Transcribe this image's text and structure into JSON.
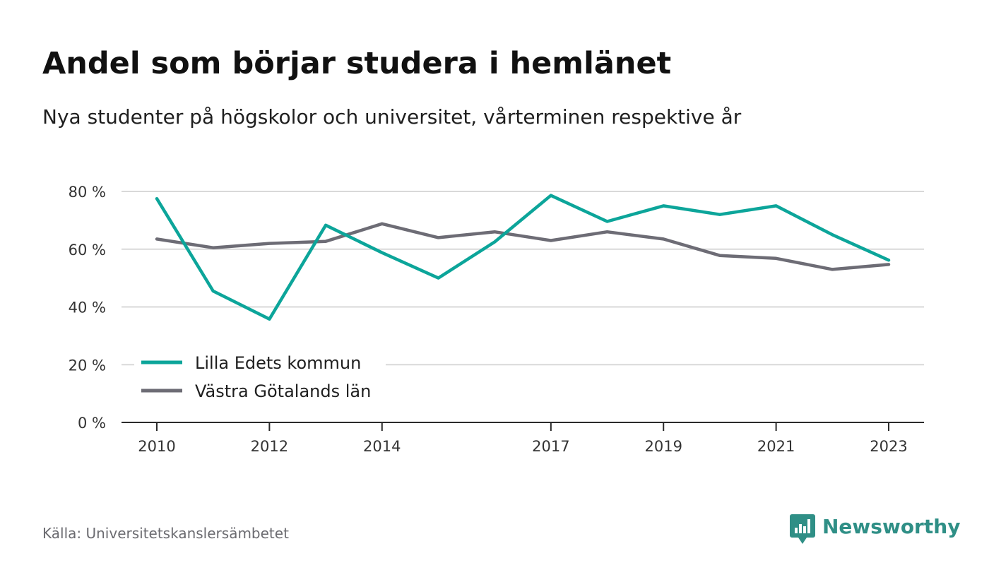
{
  "title": "Andel som börjar studera i hemlänet",
  "subtitle": "Nya studenter på högskolor och universitet, vårterminen respektive år",
  "source": "Källa: Universitetskanslersämbetet",
  "brand": {
    "name": "Newsworthy",
    "color": "#2f8f86",
    "icon": "newsworthy-logo-icon"
  },
  "chart_data": {
    "type": "line",
    "title": "Andel som börjar studera i hemlänet",
    "subtitle": "Nya studenter på högskolor och universitet, vårterminen respektive år",
    "xlabel": "",
    "ylabel": "",
    "x": [
      2010,
      2011,
      2012,
      2013,
      2014,
      2015,
      2016,
      2017,
      2018,
      2019,
      2020,
      2021,
      2022,
      2023
    ],
    "x_tick_labels": [
      "2010",
      "2012",
      "2014",
      "2017",
      "2019",
      "2021",
      "2023"
    ],
    "y_ticks": [
      0,
      20,
      40,
      60,
      80
    ],
    "y_tick_labels": [
      "0 %",
      "20 %",
      "40 %",
      "60 %",
      "80 %"
    ],
    "ylim": [
      0,
      80
    ],
    "grid": "horizontal",
    "legend_position": "bottom-left",
    "series": [
      {
        "name": "Lilla Edets kommun",
        "color": "#0ca59a",
        "values": [
          77.5,
          45.5,
          35.8,
          68.3,
          58.8,
          50.0,
          62.5,
          78.6,
          69.6,
          75.0,
          72.0,
          75.0,
          65.0,
          56.2
        ]
      },
      {
        "name": "Västra Götalands län",
        "color": "#6d6c75",
        "values": [
          63.5,
          60.5,
          62.0,
          62.7,
          68.8,
          64.0,
          66.0,
          63.0,
          66.0,
          63.5,
          57.8,
          56.8,
          53.0,
          54.7
        ]
      }
    ]
  }
}
